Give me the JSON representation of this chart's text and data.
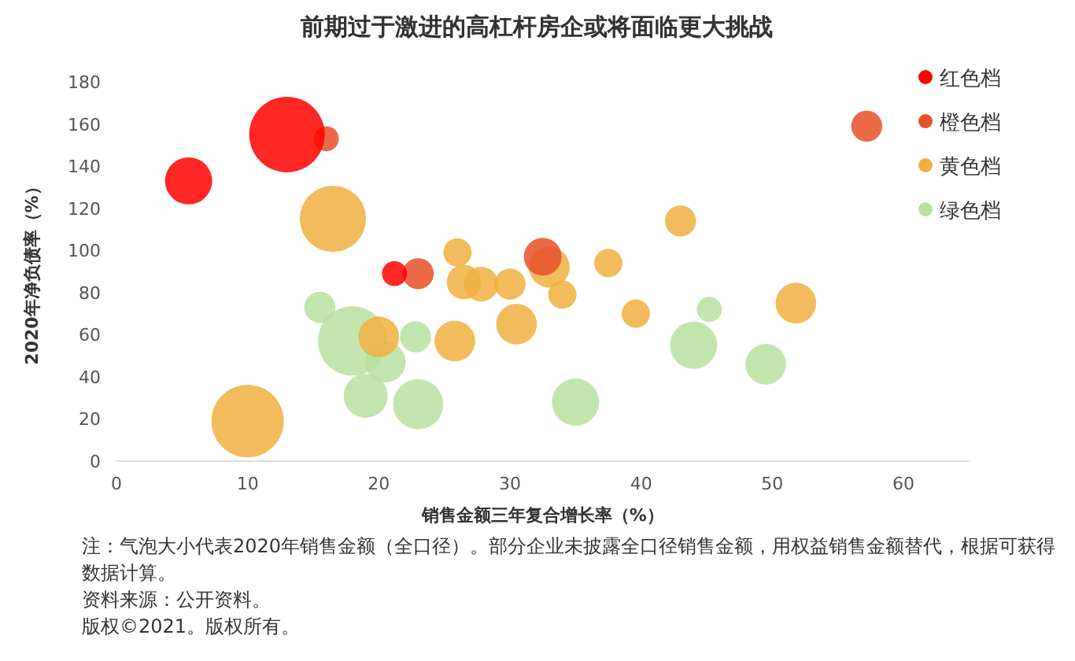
{
  "chart_data": {
    "type": "bubble",
    "title": "前期过于激进的高杠杆房企或将面临更大挑战",
    "xlabel": "销售金额三年复合增长率（%）",
    "ylabel": "2020年净负债率（%）",
    "xlim": [
      0,
      65
    ],
    "xticks": [
      0,
      10,
      20,
      30,
      40,
      50,
      60
    ],
    "ylim": [
      0,
      180
    ],
    "yticks": [
      0,
      20,
      40,
      60,
      80,
      100,
      120,
      140,
      160,
      180
    ],
    "legend": "top right",
    "grid": false,
    "series": [
      {
        "name": "红色档",
        "color": "#ff0000",
        "x": [
          5.5,
          13,
          21.2
        ],
        "values": [
          133,
          155,
          89
        ],
        "sizes": [
          0.39,
          1,
          0.11
        ]
      },
      {
        "name": "橙色档",
        "color": "#e8502a",
        "x": [
          16,
          23,
          57.2,
          32.5
        ],
        "values": [
          153,
          89,
          159,
          97
        ],
        "sizes": [
          0.11,
          0.17,
          0.17,
          0.25
        ]
      },
      {
        "name": "黄色档",
        "color": "#f0b040",
        "x": [
          16.5,
          10,
          26,
          26.5,
          27.8,
          20,
          25.8,
          30,
          30.5,
          33,
          34,
          37.5,
          39.6,
          43,
          51.8
        ],
        "values": [
          115,
          19,
          99,
          85,
          84,
          59,
          57,
          84,
          65,
          92,
          79,
          94,
          70,
          114,
          75
        ],
        "sizes": [
          0.77,
          0.92,
          0.14,
          0.21,
          0.21,
          0.29,
          0.29,
          0.17,
          0.29,
          0.29,
          0.14,
          0.14,
          0.14,
          0.17,
          0.29
        ]
      },
      {
        "name": "绿色档",
        "color": "#b8e0a0",
        "x": [
          15.5,
          18,
          20.5,
          19,
          22.8,
          23,
          35,
          44,
          45.2,
          49.5
        ],
        "values": [
          73,
          57,
          47,
          31,
          59,
          27,
          28,
          55,
          72,
          46
        ],
        "sizes": [
          0.17,
          0.84,
          0.29,
          0.34,
          0.17,
          0.44,
          0.39,
          0.39,
          0.11,
          0.29
        ]
      }
    ],
    "annotations": [
      "注：气泡大小代表2020年销售金额（全口径）。部分企业未披露全口径销售金额，用权益销售金额替代，根据可获得数据计算。",
      "资料来源：公开资料。",
      "版权©2021。版权所有。"
    ]
  }
}
